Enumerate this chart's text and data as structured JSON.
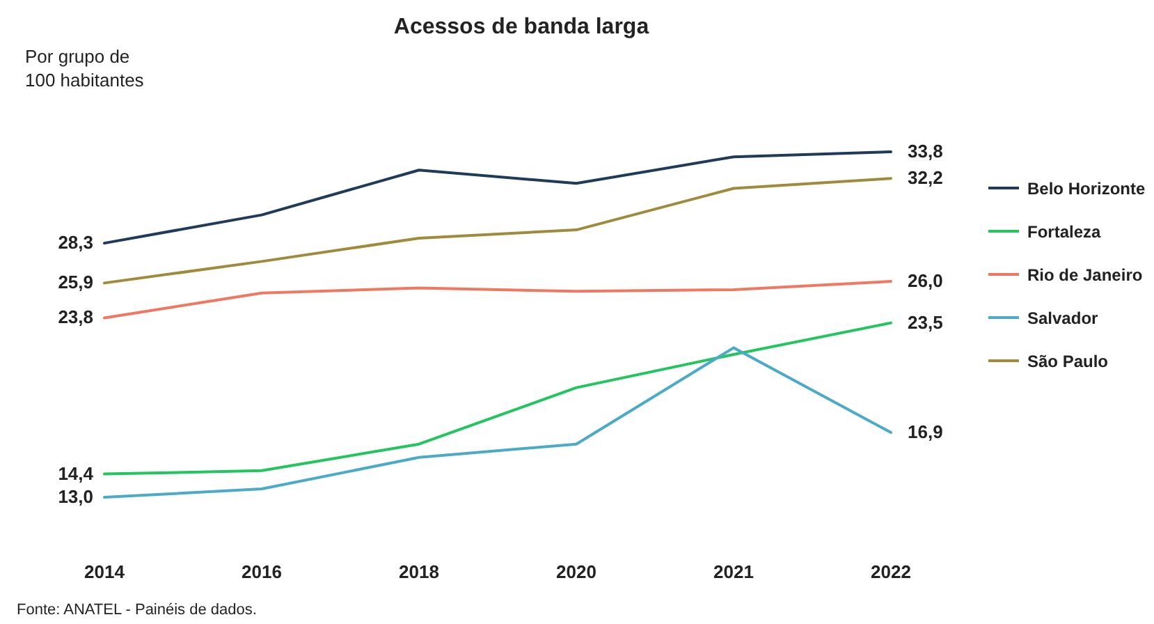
{
  "chart_data": {
    "type": "line",
    "title": "Acessos de banda larga",
    "ylabel": "Por grupo de 100 habitantes",
    "categories": [
      "2014",
      "2016",
      "2018",
      "2020",
      "2021",
      "2022"
    ],
    "legend": "right",
    "grid": false,
    "marker": "none",
    "line_style": "solid",
    "series": [
      {
        "name": "Belo Horizonte",
        "color": "#1f3a5a",
        "values": [
          28.3,
          30.0,
          32.7,
          31.9,
          33.5,
          33.8
        ],
        "value_labels": [
          "28,3",
          null,
          null,
          null,
          null,
          "33,8"
        ]
      },
      {
        "name": "Fortaleza",
        "color": "#22c55e",
        "values": [
          14.4,
          14.6,
          16.2,
          19.6,
          21.6,
          23.5
        ],
        "value_labels": [
          "14,4",
          null,
          null,
          null,
          null,
          "23,5"
        ]
      },
      {
        "name": "Rio de Janeiro",
        "color": "#f07860",
        "values": [
          23.8,
          25.3,
          25.6,
          25.4,
          25.5,
          26.0
        ],
        "value_labels": [
          "23,8",
          null,
          null,
          null,
          null,
          "26,0"
        ]
      },
      {
        "name": "Salvador",
        "color": "#4aaac8",
        "values": [
          13.0,
          13.5,
          15.4,
          16.2,
          22.0,
          16.9
        ],
        "value_labels": [
          "13,0",
          null,
          null,
          null,
          null,
          "16,9"
        ]
      },
      {
        "name": "São Paulo",
        "color": "#a08a3c",
        "values": [
          25.9,
          27.2,
          28.6,
          29.1,
          31.6,
          32.2
        ],
        "value_labels": [
          "25,9",
          null,
          null,
          null,
          null,
          "32,2"
        ]
      }
    ],
    "annotations": [
      "Fonte: ANATEL - Painéis de dados."
    ]
  }
}
